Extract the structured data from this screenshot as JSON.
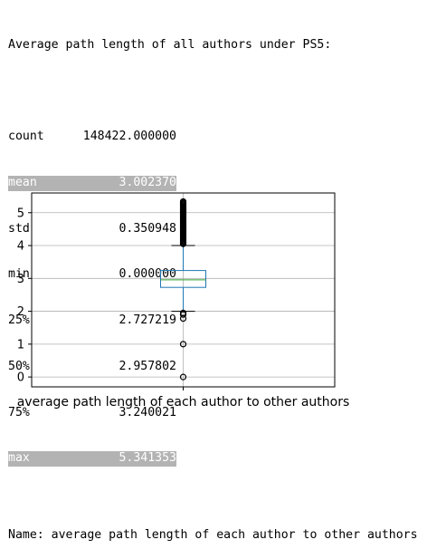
{
  "output": {
    "heading": "Average path length of all authors under PS5:",
    "stats": [
      {
        "key": "count",
        "value": "148422.000000",
        "highlighted": false
      },
      {
        "key": "mean",
        "value": "3.002370",
        "highlighted": true
      },
      {
        "key": "std",
        "value": "0.350948",
        "highlighted": false
      },
      {
        "key": "min",
        "value": "0.000000",
        "highlighted": false
      },
      {
        "key": "25%",
        "value": "2.727219",
        "highlighted": false
      },
      {
        "key": "50%",
        "value": "2.957802",
        "highlighted": false
      },
      {
        "key": "75%",
        "value": "3.240021",
        "highlighted": false
      },
      {
        "key": "max",
        "value": "5.341353",
        "highlighted": true
      }
    ],
    "name_line": "Name: average path length of each author to other authors",
    "highlight_color": "#b3b3b3"
  },
  "chart_data": {
    "type": "box",
    "categories": [
      "average path length of each author to other authors"
    ],
    "box": {
      "q1": 2.727219,
      "median": 2.957802,
      "q3": 3.240021,
      "whisker_low": 2.0,
      "whisker_high": 4.0
    },
    "outliers": [
      0.0,
      1.0,
      1.78,
      1.9,
      1.95,
      4.05,
      4.2,
      4.4,
      4.6,
      4.8,
      5.0,
      5.1,
      5.2,
      5.341353
    ],
    "ylim": [
      -0.3,
      5.6
    ],
    "yticks": [
      0,
      1,
      2,
      3,
      4,
      5
    ],
    "ytick_labels": [
      "0",
      "1",
      "2",
      "3",
      "4",
      "5"
    ],
    "grid": true,
    "colors": {
      "box": "#1f77b4",
      "median": "#2ca02c",
      "whisker": "#000000",
      "grid": "#b0b0b0",
      "flier": "#000000"
    }
  }
}
